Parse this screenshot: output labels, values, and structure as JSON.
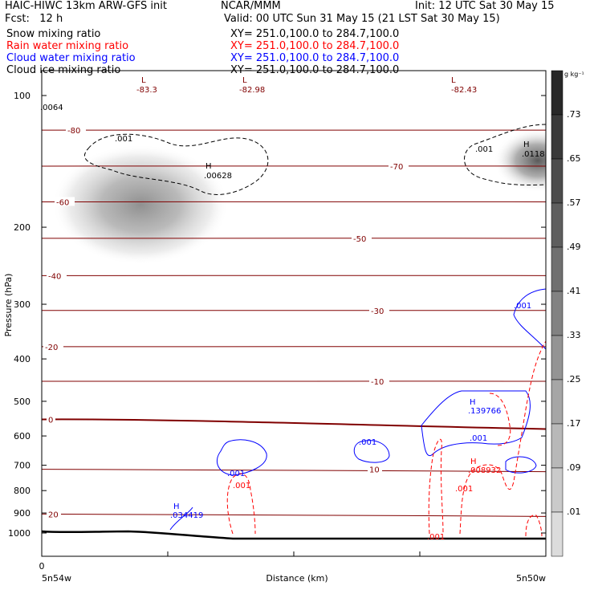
{
  "header": {
    "title_left": "HAIC-HIWC 13km ARW-GFS init",
    "org": "NCAR/MMM",
    "init": "Init: 12 UTC Sat 30 May 15",
    "fcst": "Fcst:   12 h",
    "valid": "Valid: 00 UTC Sun 31 May 15 (21 LST Sat 30 May 15)"
  },
  "legend_rows": [
    {
      "name": "Snow mixing ratio",
      "xy": "XY= 251.0,100.0 to 284.7,100.0",
      "color": "#000000"
    },
    {
      "name": "Rain water mixing ratio",
      "xy": "XY= 251.0,100.0 to 284.7,100.0",
      "color": "#ff0000"
    },
    {
      "name": "Cloud water mixing ratio",
      "xy": "XY= 251.0,100.0 to 284.7,100.0",
      "color": "#0000ff"
    },
    {
      "name": "Cloud ice mixing ratio",
      "xy": "XY= 251.0,100.0 to 284.7,100.0",
      "color": "#000000"
    }
  ],
  "chart_data": {
    "type": "heatmap",
    "xlabel": "Distance (km)",
    "ylabel": "Pressure (hPa)",
    "x_ticks": [
      "0",
      "",
      "",
      "",
      ""
    ],
    "x_end_labels": {
      "left": "5n54w",
      "right": "5n50w"
    },
    "y_ticks": [
      100,
      200,
      300,
      400,
      500,
      600,
      700,
      800,
      900,
      1000
    ],
    "y_log": true,
    "colorbar_unit": "g kg⁻¹",
    "colorbar_ticks": [
      ".73",
      ".65",
      ".57",
      ".49",
      ".41",
      ".33",
      ".25",
      ".17",
      ".09",
      ".01"
    ],
    "temperature_contours": [
      {
        "label": "-80",
        "p": 120
      },
      {
        "label": "-70",
        "p": 145
      },
      {
        "label": "-60",
        "p": 175
      },
      {
        "label": "-50",
        "p": 212
      },
      {
        "label": "-40",
        "p": 258
      },
      {
        "label": "-30",
        "p": 310
      },
      {
        "label": "-20",
        "p": 375
      },
      {
        "label": "-10",
        "p": 450
      },
      {
        "label": "0",
        "p": 550
      },
      {
        "label": "10",
        "p": 715
      },
      {
        "label": "20",
        "p": 905
      }
    ],
    "extrema_labels": [
      {
        "type": "L",
        "value": "-83.3",
        "color": "#800000"
      },
      {
        "type": "L",
        "value": "-82.98",
        "color": "#800000"
      },
      {
        "type": "L",
        "value": "-82.43",
        "color": "#800000"
      },
      {
        "type": "H",
        "value": ".00628",
        "color": "#000000"
      },
      {
        "type": "H",
        "value": ".0118",
        "color": "#000000"
      },
      {
        "type": "H",
        "value": ".139766",
        "color": "#0000ff"
      },
      {
        "type": "H",
        "value": ".008932",
        "color": "#ff0000"
      },
      {
        "type": "H",
        "value": ".034419",
        "color": "#0000ff"
      }
    ],
    "other_labels": [
      ".0064",
      ".001"
    ]
  }
}
